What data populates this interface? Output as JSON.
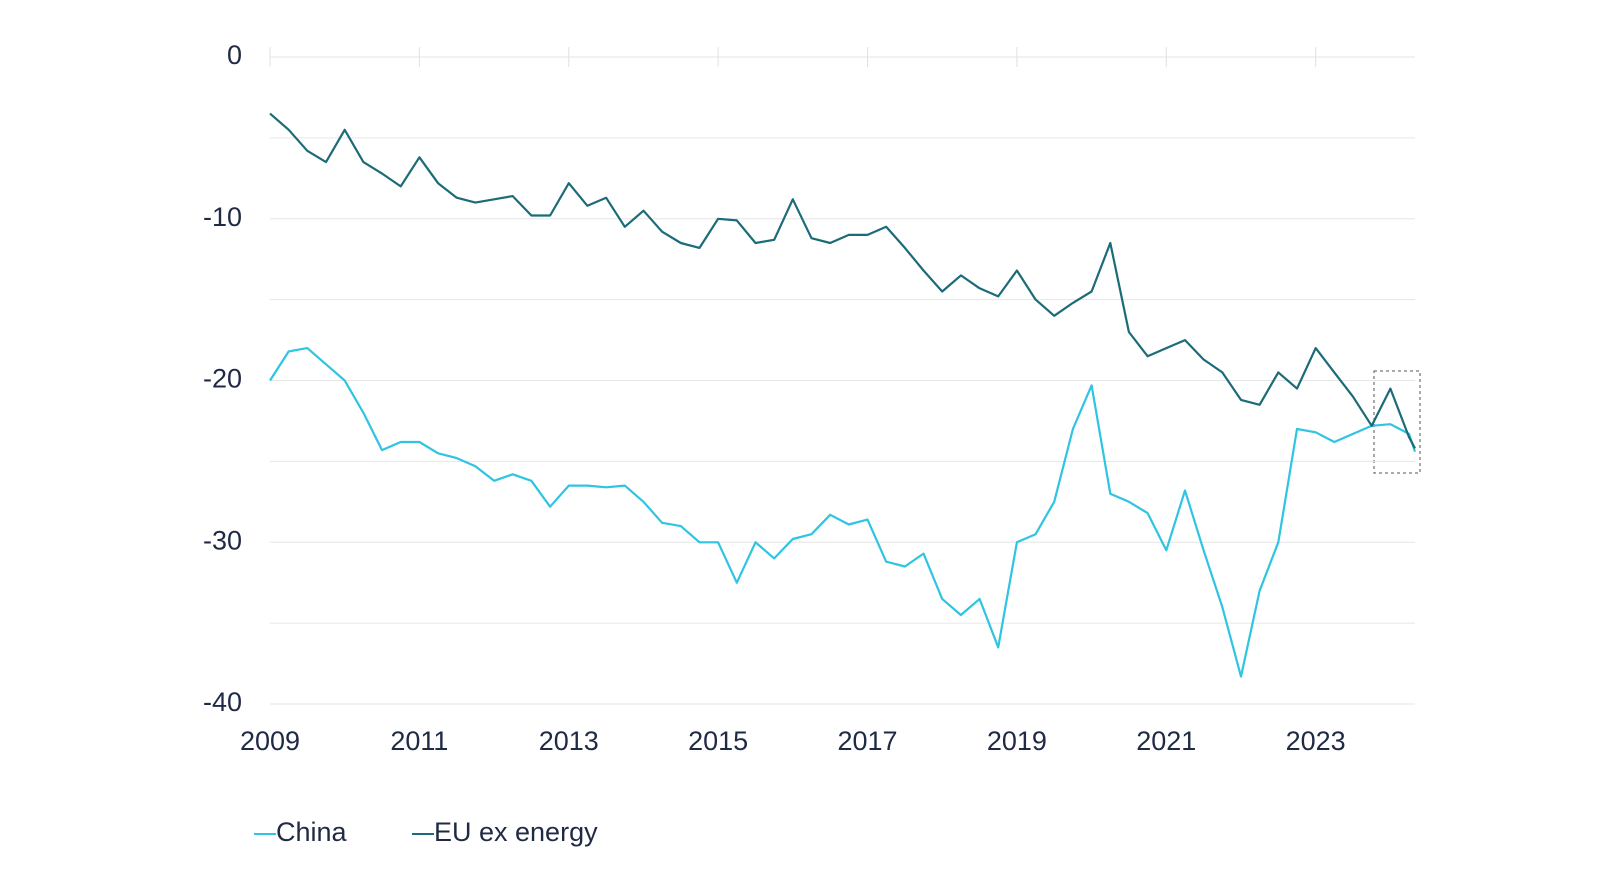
{
  "chart_data": {
    "type": "line",
    "x": [
      2009.0,
      2009.25,
      2009.5,
      2009.75,
      2010.0,
      2010.25,
      2010.5,
      2010.75,
      2011.0,
      2011.25,
      2011.5,
      2011.75,
      2012.0,
      2012.25,
      2012.5,
      2012.75,
      2013.0,
      2013.25,
      2013.5,
      2013.75,
      2014.0,
      2014.25,
      2014.5,
      2014.75,
      2015.0,
      2015.25,
      2015.5,
      2015.75,
      2016.0,
      2016.25,
      2016.5,
      2016.75,
      2017.0,
      2017.25,
      2017.5,
      2017.75,
      2018.0,
      2018.25,
      2018.5,
      2018.75,
      2019.0,
      2019.25,
      2019.5,
      2019.75,
      2020.0,
      2020.25,
      2020.5,
      2020.75,
      2021.0,
      2021.25,
      2021.5,
      2021.75,
      2022.0,
      2022.25,
      2022.5,
      2022.75,
      2023.0,
      2023.25,
      2023.5,
      2023.75,
      2024.0,
      2024.25,
      2024.33
    ],
    "series": [
      {
        "name": "China",
        "color": "#2ec4e2",
        "values": [
          -20.0,
          -18.2,
          -18.0,
          -19.0,
          -20.0,
          -22.0,
          -24.3,
          -23.8,
          -23.8,
          -24.5,
          -24.8,
          -25.3,
          -26.2,
          -25.8,
          -26.2,
          -27.8,
          -26.5,
          -26.5,
          -26.6,
          -26.5,
          -27.5,
          -28.8,
          -29.0,
          -30.0,
          -30.0,
          -32.5,
          -30.0,
          -31.0,
          -29.8,
          -29.5,
          -28.3,
          -28.9,
          -28.6,
          -31.2,
          -31.5,
          -30.7,
          -33.5,
          -34.5,
          -33.5,
          -36.5,
          -30.0,
          -29.5,
          -27.5,
          -23.0,
          -20.3,
          -27.0,
          -27.5,
          -28.2,
          -30.5,
          -26.8,
          -30.5,
          -34.0,
          -38.3,
          -33.0,
          -30.0,
          -23.0,
          -23.2,
          -23.8,
          -23.3,
          -22.8,
          -22.7,
          -23.3,
          -24.4
        ]
      },
      {
        "name": "EU ex energy",
        "color": "#1b6b78",
        "values": [
          -3.5,
          -4.5,
          -5.8,
          -6.5,
          -4.5,
          -6.5,
          -7.2,
          -8.0,
          -6.2,
          -7.8,
          -8.7,
          -9.0,
          -8.8,
          -8.6,
          -9.8,
          -9.8,
          -7.8,
          -9.2,
          -8.7,
          -10.5,
          -9.5,
          -10.8,
          -11.5,
          -11.8,
          -10.0,
          -10.1,
          -11.5,
          -11.3,
          -8.8,
          -11.2,
          -11.5,
          -11.0,
          -11.0,
          -10.5,
          -11.8,
          -13.2,
          -14.5,
          -13.5,
          -14.3,
          -14.8,
          -13.2,
          -15.0,
          -16.0,
          -15.2,
          -14.5,
          -11.5,
          -17.0,
          -18.5,
          -18.0,
          -17.5,
          -18.7,
          -19.5,
          -21.2,
          -21.5,
          -19.5,
          -20.5,
          -18.0,
          -19.5,
          -21.0,
          -22.8,
          -20.5,
          -23.5,
          -24.2
        ]
      }
    ],
    "xlim": [
      2009,
      2024.33
    ],
    "xticks": [
      2009,
      2011,
      2013,
      2015,
      2017,
      2019,
      2021,
      2023
    ],
    "ylim": [
      -40,
      0
    ],
    "yticks": [
      -40,
      -30,
      -20,
      -10,
      0
    ],
    "yminor": [
      -35,
      -25,
      -15,
      -5
    ],
    "grid": true
  }
}
